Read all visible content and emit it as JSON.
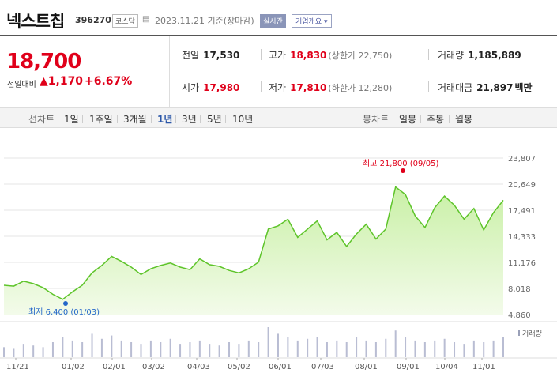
{
  "header": {
    "stock_name": "넥스트칩",
    "code": "396270",
    "market": "코스닥",
    "date": "2023.11.21 기준(장마감)",
    "realtime_label": "실시간",
    "company_info_label": "기업개요 ▾"
  },
  "price": {
    "current": "18,700",
    "change_label": "전일대비",
    "change": "▲1,170",
    "change_pct": "+6.67%"
  },
  "stats": {
    "prev_close_label": "전일",
    "prev_close": "17,530",
    "high_label": "고가",
    "high": "18,830",
    "upper_limit": "(상한가 22,750)",
    "volume_label": "거래량",
    "volume": "1,185,889",
    "open_label": "시가",
    "open": "17,980",
    "low_label": "저가",
    "low": "17,810",
    "lower_limit": "(하한가 12,280)",
    "amount_label": "거래대금",
    "amount": "21,897",
    "amount_unit": "백만"
  },
  "period_bar": {
    "line_chart_label": "선차트",
    "periods": [
      "1일",
      "1주일",
      "3개월",
      "1년",
      "3년",
      "5년",
      "10년"
    ],
    "selected_period": "1년",
    "candle_label": "봉차트",
    "candles": [
      "일봉",
      "주봉",
      "월봉"
    ]
  },
  "chart_data": {
    "type": "area",
    "y_ticks": [
      "23,807",
      "20,649",
      "17,491",
      "14,333",
      "11,176",
      "8,018",
      "4,860"
    ],
    "ylim": [
      4860,
      23807
    ],
    "x_ticks": [
      "11/21",
      "01/02",
      "02/01",
      "03/02",
      "04/03",
      "05/02",
      "06/01",
      "07/03",
      "08/01",
      "09/01",
      "10/04",
      "11/01"
    ],
    "max_annotation": "최고 21,800 (09/05)",
    "min_annotation": "최저 6,400 (01/03)",
    "volume_label": "거래량",
    "line_color": "#5ec42a",
    "fill_color": "#c9f0a6",
    "max_marker_color": "#e0001a",
    "min_marker_color": "#2366c9",
    "series": [
      {
        "x": [
          "11/21",
          "11/28",
          "12/05",
          "12/12",
          "12/19",
          "12/26",
          "01/02",
          "01/09",
          "01/16",
          "01/30",
          "02/06",
          "02/13",
          "02/20",
          "02/27",
          "03/06",
          "03/13",
          "03/20",
          "03/27",
          "04/03",
          "04/10",
          "04/17",
          "04/24",
          "05/01",
          "05/08",
          "05/15",
          "05/22",
          "05/29",
          "06/05",
          "06/12",
          "06/19",
          "06/26",
          "07/03",
          "07/10",
          "07/17",
          "07/24",
          "07/31",
          "08/07",
          "08/14",
          "08/21",
          "08/28",
          "09/04",
          "09/11",
          "09/18",
          "09/25",
          "10/02",
          "10/09",
          "10/16",
          "10/23",
          "10/30",
          "11/06",
          "11/13",
          "11/21"
        ],
        "values": [
          8400,
          8300,
          8900,
          8600,
          8100,
          7300,
          6700,
          7600,
          8400,
          9900,
          10800,
          11900,
          11300,
          10600,
          9700,
          10400,
          10800,
          11100,
          10600,
          10300,
          11600,
          10900,
          10700,
          10200,
          9900,
          10400,
          11200,
          15200,
          15600,
          16400,
          14200,
          15200,
          16200,
          13900,
          14800,
          13100,
          14600,
          15800,
          14000,
          15200,
          20300,
          19400,
          16800,
          15400,
          17800,
          19200,
          18100,
          16400,
          17700,
          15100,
          17200,
          18700
        ]
      }
    ],
    "volume_values": [
      6,
      5,
      8,
      7,
      6,
      9,
      12,
      10,
      9,
      14,
      11,
      13,
      10,
      9,
      8,
      10,
      9,
      11,
      8,
      9,
      10,
      8,
      7,
      9,
      8,
      10,
      9,
      18,
      14,
      12,
      10,
      11,
      12,
      9,
      10,
      9,
      12,
      10,
      9,
      11,
      16,
      12,
      10,
      9,
      10,
      11,
      9,
      8,
      10,
      9,
      10,
      12
    ]
  }
}
